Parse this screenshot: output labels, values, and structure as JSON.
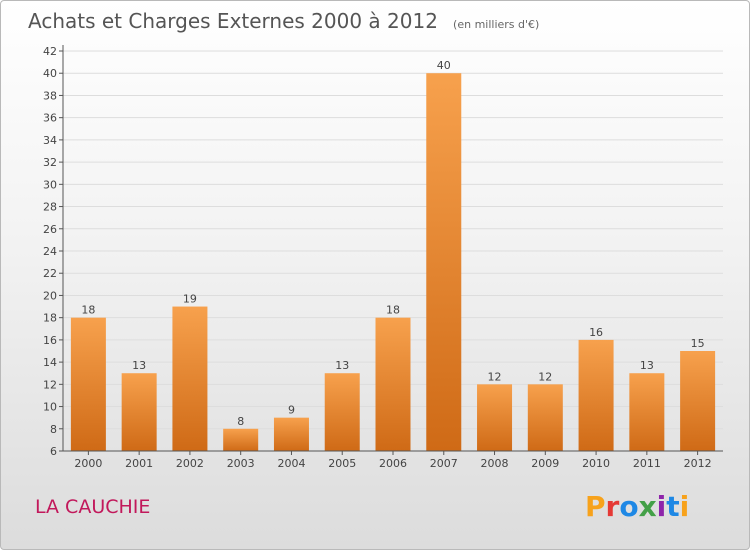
{
  "header": {
    "title": "Achats et Charges Externes 2000 à 2012",
    "unit": "(en milliers d'€)"
  },
  "footer": {
    "commune": "LA CAUCHIE",
    "logo_text": "Proxiti",
    "logo_colors": [
      "#f7a21b",
      "#e53935",
      "#1e88e5",
      "#43a047",
      "#8e24aa",
      "#1e88e5",
      "#f7a21b"
    ]
  },
  "colors": {
    "bar_top": "#f7a14d",
    "bar_bottom": "#cf6a16",
    "grid": "#dddddd",
    "axis": "#555555",
    "commune": "#c2185b"
  },
  "chart_data": {
    "type": "bar",
    "categories": [
      "2000",
      "2001",
      "2002",
      "2003",
      "2004",
      "2005",
      "2006",
      "2007",
      "2008",
      "2009",
      "2010",
      "2011",
      "2012"
    ],
    "values": [
      18,
      13,
      19,
      8,
      9,
      13,
      18,
      40,
      12,
      12,
      16,
      13,
      15
    ],
    "title": "Achats et Charges Externes 2000 à 2012",
    "xlabel": "",
    "ylabel": "",
    "ylim": [
      6,
      42
    ],
    "yticks": [
      6,
      8,
      10,
      12,
      14,
      16,
      18,
      20,
      22,
      24,
      26,
      28,
      30,
      32,
      34,
      36,
      38,
      40,
      42
    ],
    "grid": true
  }
}
